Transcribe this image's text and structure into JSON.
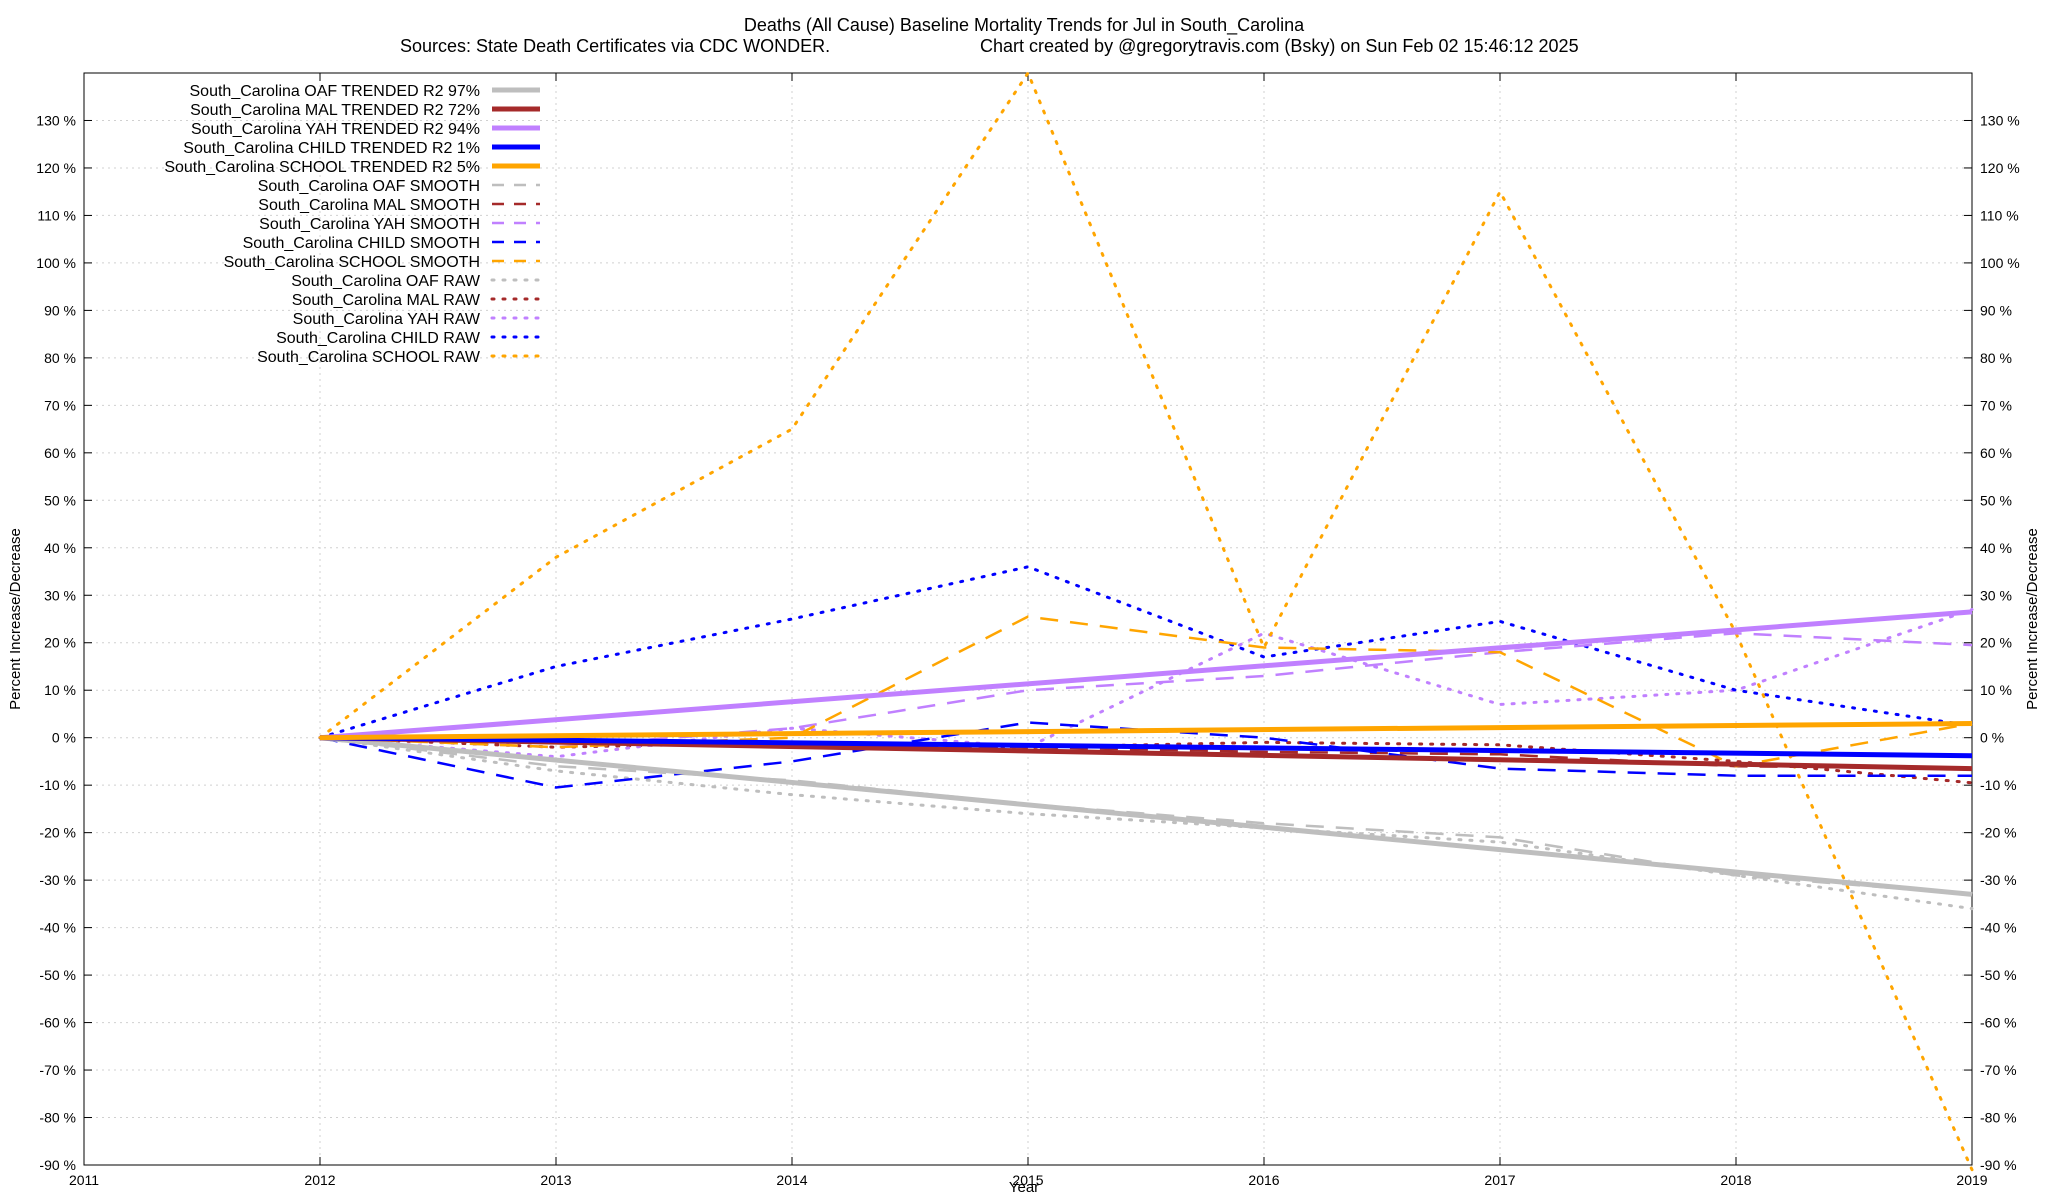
{
  "title": "Deaths (All Cause)  Baseline Mortality Trends for Jul in South_Carolina",
  "subtitle_left": "Sources: State Death Certificates via CDC WONDER.",
  "subtitle_right": "Chart created by @gregorytravis.com (Bsky) on Sun Feb 02 15:46:12 2025",
  "chart_data": {
    "type": "line",
    "title": "Deaths (All Cause)  Baseline Mortality Trends for Jul in South_Carolina",
    "xlabel": "Year",
    "ylabel": "Percent Increase/Decrease",
    "y2label": "Percent Increase/Decrease",
    "xlim": [
      2011,
      2019
    ],
    "ylim": [
      -90,
      140
    ],
    "x_ticks": [
      2011,
      2012,
      2013,
      2014,
      2015,
      2016,
      2017,
      2018,
      2019
    ],
    "y_ticks": [
      -90,
      -80,
      -70,
      -60,
      -50,
      -40,
      -30,
      -20,
      -10,
      0,
      10,
      20,
      30,
      40,
      50,
      60,
      70,
      80,
      90,
      100,
      110,
      120,
      130
    ],
    "y_tick_suffix": " %",
    "grid": true,
    "legend_position": "top-left",
    "series": [
      {
        "name": "South_Carolina OAF TRENDED R2  97%",
        "color": "#bebebe",
        "style": "solid",
        "x": [
          2012,
          2019
        ],
        "y": [
          0,
          -33
        ]
      },
      {
        "name": "South_Carolina MAL TRENDED R2  72%",
        "color": "#a52a2a",
        "style": "solid",
        "x": [
          2012,
          2019
        ],
        "y": [
          0,
          -6.5
        ]
      },
      {
        "name": "South_Carolina YAH TRENDED R2  94%",
        "color": "#c080ff",
        "style": "solid",
        "x": [
          2012,
          2019
        ],
        "y": [
          0,
          26.5
        ]
      },
      {
        "name": "South_Carolina CHILD TRENDED R2   1%",
        "color": "#0000ff",
        "style": "solid",
        "x": [
          2012,
          2019
        ],
        "y": [
          0,
          -3.8
        ]
      },
      {
        "name": "South_Carolina SCHOOL TRENDED R2   5%",
        "color": "#ffa500",
        "style": "solid",
        "x": [
          2012,
          2019
        ],
        "y": [
          0,
          3
        ]
      },
      {
        "name": "South_Carolina OAF SMOOTH",
        "color": "#bebebe",
        "style": "dash",
        "x": [
          2012,
          2013,
          2014,
          2015,
          2016,
          2017,
          2018,
          2019
        ],
        "y": [
          0,
          -6,
          -9,
          -14,
          -18,
          -21,
          -29,
          -33
        ]
      },
      {
        "name": "South_Carolina MAL SMOOTH",
        "color": "#a52a2a",
        "style": "dash",
        "x": [
          2012,
          2013,
          2014,
          2015,
          2016,
          2017,
          2018,
          2019
        ],
        "y": [
          0,
          -1,
          -1.5,
          -2,
          -3,
          -3.5,
          -6,
          -6.5
        ]
      },
      {
        "name": "South_Carolina YAH SMOOTH",
        "color": "#c080ff",
        "style": "dash",
        "x": [
          2012,
          2013,
          2014,
          2015,
          2016,
          2017,
          2018,
          2019
        ],
        "y": [
          0,
          -2,
          2,
          10,
          13,
          18,
          22,
          19.5
        ]
      },
      {
        "name": "South_Carolina CHILD SMOOTH",
        "color": "#0000ff",
        "style": "dash",
        "x": [
          2012,
          2013,
          2014,
          2015,
          2016,
          2017,
          2018,
          2019
        ],
        "y": [
          0,
          -10.5,
          -5,
          3.2,
          0,
          -6.5,
          -8,
          -8
        ]
      },
      {
        "name": "South_Carolina SCHOOL SMOOTH",
        "color": "#ffa500",
        "style": "dash",
        "x": [
          2012,
          2013,
          2014,
          2015,
          2016,
          2017,
          2018,
          2019
        ],
        "y": [
          0,
          -2,
          0,
          25.5,
          19,
          18,
          -6,
          3
        ]
      },
      {
        "name": "South_Carolina OAF RAW",
        "color": "#bebebe",
        "style": "dot",
        "x": [
          2012,
          2013,
          2014,
          2015,
          2016,
          2017,
          2018,
          2019
        ],
        "y": [
          0,
          -7,
          -12,
          -16,
          -19,
          -22,
          -29,
          -36
        ]
      },
      {
        "name": "South_Carolina MAL RAW",
        "color": "#a52a2a",
        "style": "dot",
        "x": [
          2012,
          2013,
          2014,
          2015,
          2016,
          2017,
          2018,
          2019
        ],
        "y": [
          0,
          -2,
          -1,
          -2,
          -1,
          -1.5,
          -5,
          -9.5
        ]
      },
      {
        "name": "South_Carolina YAH RAW",
        "color": "#c080ff",
        "style": "dot",
        "x": [
          2012,
          2013,
          2014,
          2015,
          2016,
          2017,
          2018,
          2019
        ],
        "y": [
          0,
          -4,
          2,
          -2,
          22,
          7,
          10,
          27
        ]
      },
      {
        "name": "South_Carolina CHILD RAW",
        "color": "#0000ff",
        "style": "dot",
        "x": [
          2012,
          2013,
          2014,
          2015,
          2016,
          2017,
          2018,
          2019
        ],
        "y": [
          0,
          15,
          25,
          36,
          17,
          24.5,
          10,
          2.5
        ]
      },
      {
        "name": "South_Carolina SCHOOL RAW",
        "color": "#ffa500",
        "style": "dot",
        "x": [
          2012,
          2013,
          2014,
          2015,
          2016,
          2017,
          2018,
          2019
        ],
        "y": [
          0,
          38,
          65,
          140,
          19,
          115,
          22,
          -91
        ]
      }
    ]
  }
}
